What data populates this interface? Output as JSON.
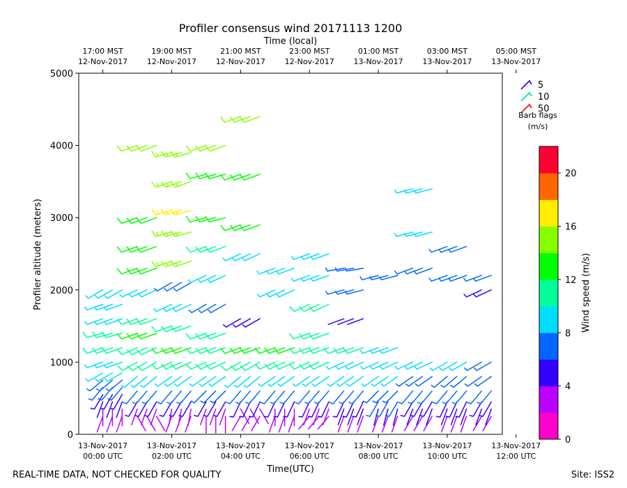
{
  "chart_data": {
    "type": "wind-barb",
    "title": "Profiler consensus wind 20171113 1200",
    "xlabel": "Time(UTC)",
    "xlabel_top": "Time (local)",
    "ylabel": "Profiler altitude (meters)",
    "xlim_hours_utc": [
      -0.7,
      11.6
    ],
    "ylim": [
      0,
      5000
    ],
    "y_ticks": [
      0,
      1000,
      2000,
      3000,
      4000,
      5000
    ],
    "x_ticks_bottom": [
      {
        "hour": 0,
        "date": "13-Nov-2017",
        "time": "00:00 UTC"
      },
      {
        "hour": 2,
        "date": "13-Nov-2017",
        "time": "02:00 UTC"
      },
      {
        "hour": 4,
        "date": "13-Nov-2017",
        "time": "04:00 UTC"
      },
      {
        "hour": 6,
        "date": "13-Nov-2017",
        "time": "06:00 UTC"
      },
      {
        "hour": 8,
        "date": "13-Nov-2017",
        "time": "08:00 UTC"
      },
      {
        "hour": 10,
        "date": "13-Nov-2017",
        "time": "10:00 UTC"
      },
      {
        "hour": 12,
        "date": "13-Nov-2017",
        "time": "12:00 UTC"
      }
    ],
    "x_ticks_top": [
      {
        "hour": 0,
        "time": "17:00 MST",
        "date": "12-Nov-2017"
      },
      {
        "hour": 2,
        "time": "19:00 MST",
        "date": "12-Nov-2017"
      },
      {
        "hour": 4,
        "time": "21:00 MST",
        "date": "12-Nov-2017"
      },
      {
        "hour": 6,
        "time": "23:00 MST",
        "date": "12-Nov-2017"
      },
      {
        "hour": 8,
        "time": "01:00 MST",
        "date": "13-Nov-2017"
      },
      {
        "hour": 10,
        "time": "03:00 MST",
        "date": "13-Nov-2017"
      },
      {
        "hour": 12,
        "time": "05:00 MST",
        "date": "13-Nov-2017"
      }
    ],
    "barb_legend": {
      "title": "Barb flags",
      "units": "(m/s)",
      "entries": [
        {
          "label": "5",
          "color": "#1a1aff"
        },
        {
          "label": "10",
          "color": "#00e5a0"
        },
        {
          "label": "50",
          "color": "#ff1a1a"
        }
      ]
    },
    "colorbar": {
      "label": "Wind speed (m/s)",
      "min": 0,
      "max": 22,
      "step": 2,
      "ticks": [
        0,
        4,
        8,
        12,
        16,
        20
      ],
      "colors": [
        "#ff00cc",
        "#bb00ff",
        "#3300ff",
        "#0066ff",
        "#00ddff",
        "#00ff99",
        "#00ff00",
        "#88ff00",
        "#ffee00",
        "#ff6600",
        "#ff0033"
      ]
    },
    "series": [
      {
        "name": "00:00 UTC",
        "hour": 0.0,
        "levels": [
          [
            250,
            3,
            200
          ],
          [
            350,
            3,
            180
          ],
          [
            450,
            4,
            200
          ],
          [
            550,
            5,
            210
          ],
          [
            650,
            6,
            220
          ],
          [
            750,
            7,
            230
          ],
          [
            850,
            8,
            240
          ],
          [
            1000,
            9,
            250
          ],
          [
            1200,
            10,
            250
          ],
          [
            1400,
            10,
            255
          ],
          [
            1600,
            9,
            250
          ],
          [
            1800,
            9,
            250
          ],
          [
            2000,
            8,
            240
          ]
        ]
      },
      {
        "name": "01:00 UTC",
        "hour": 1.0,
        "levels": [
          [
            250,
            2,
            150
          ],
          [
            350,
            3,
            200
          ],
          [
            450,
            5,
            210
          ],
          [
            600,
            6,
            220
          ],
          [
            800,
            8,
            230
          ],
          [
            1000,
            10,
            240
          ],
          [
            1200,
            11,
            245
          ],
          [
            1400,
            12,
            250
          ],
          [
            1600,
            10,
            250
          ],
          [
            2000,
            9,
            245
          ],
          [
            2300,
            12,
            250
          ],
          [
            2600,
            13,
            250
          ],
          [
            3000,
            13,
            250
          ],
          [
            4000,
            14,
            250
          ]
        ]
      },
      {
        "name": "02:00 UTC",
        "hour": 2.0,
        "levels": [
          [
            250,
            2,
            200
          ],
          [
            350,
            3,
            190
          ],
          [
            450,
            5,
            210
          ],
          [
            600,
            6,
            220
          ],
          [
            800,
            8,
            235
          ],
          [
            1000,
            11,
            245
          ],
          [
            1200,
            12,
            250
          ],
          [
            1500,
            11,
            250
          ],
          [
            1800,
            9,
            245
          ],
          [
            2100,
            6,
            240
          ],
          [
            2400,
            15,
            250
          ],
          [
            2800,
            15,
            255
          ],
          [
            3100,
            16,
            255
          ],
          [
            3500,
            15,
            250
          ],
          [
            3900,
            15,
            255
          ]
        ]
      },
      {
        "name": "03:00 UTC",
        "hour": 3.0,
        "levels": [
          [
            250,
            2,
            180
          ],
          [
            350,
            3,
            200
          ],
          [
            450,
            5,
            210
          ],
          [
            600,
            6,
            225
          ],
          [
            800,
            8,
            235
          ],
          [
            1000,
            10,
            245
          ],
          [
            1200,
            11,
            250
          ],
          [
            1400,
            10,
            250
          ],
          [
            1800,
            6,
            240
          ],
          [
            2200,
            9,
            245
          ],
          [
            2600,
            10,
            250
          ],
          [
            3000,
            12,
            255
          ],
          [
            3600,
            13,
            255
          ],
          [
            4000,
            14,
            250
          ]
        ]
      },
      {
        "name": "04:00 UTC",
        "hour": 4.0,
        "levels": [
          [
            250,
            2,
            210
          ],
          [
            350,
            2,
            150
          ],
          [
            450,
            5,
            205
          ],
          [
            600,
            6,
            220
          ],
          [
            800,
            8,
            230
          ],
          [
            1000,
            10,
            240
          ],
          [
            1200,
            12,
            250
          ],
          [
            1600,
            5,
            240
          ],
          [
            2500,
            9,
            245
          ],
          [
            2900,
            12,
            250
          ],
          [
            3600,
            13,
            250
          ],
          [
            4400,
            14,
            250
          ]
        ]
      },
      {
        "name": "05:00 UTC",
        "hour": 5.0,
        "levels": [
          [
            250,
            2,
            200
          ],
          [
            350,
            3,
            180
          ],
          [
            450,
            5,
            205
          ],
          [
            600,
            7,
            220
          ],
          [
            800,
            9,
            235
          ],
          [
            1000,
            11,
            245
          ],
          [
            1200,
            12,
            250
          ],
          [
            2000,
            8,
            245
          ],
          [
            2300,
            9,
            250
          ]
        ]
      },
      {
        "name": "06:00 UTC",
        "hour": 6.0,
        "levels": [
          [
            250,
            2,
            220
          ],
          [
            350,
            3,
            200
          ],
          [
            450,
            5,
            205
          ],
          [
            600,
            7,
            220
          ],
          [
            800,
            9,
            235
          ],
          [
            1000,
            10,
            245
          ],
          [
            1200,
            11,
            250
          ],
          [
            1400,
            11,
            250
          ],
          [
            1800,
            10,
            245
          ],
          [
            2200,
            8,
            250
          ],
          [
            2500,
            8,
            250
          ]
        ]
      },
      {
        "name": "07:00 UTC",
        "hour": 7.0,
        "levels": [
          [
            250,
            2,
            200
          ],
          [
            350,
            4,
            200
          ],
          [
            450,
            5,
            205
          ],
          [
            600,
            7,
            220
          ],
          [
            800,
            8,
            235
          ],
          [
            1000,
            9,
            245
          ],
          [
            1200,
            10,
            250
          ],
          [
            1600,
            4,
            250
          ],
          [
            2000,
            6,
            255
          ],
          [
            2300,
            7,
            260
          ]
        ]
      },
      {
        "name": "08:00 UTC",
        "hour": 8.0,
        "levels": [
          [
            250,
            2,
            200
          ],
          [
            350,
            4,
            195
          ],
          [
            450,
            6,
            210
          ],
          [
            600,
            7,
            225
          ],
          [
            800,
            8,
            235
          ],
          [
            1000,
            9,
            245
          ],
          [
            1200,
            8,
            250
          ],
          [
            2200,
            6,
            255
          ]
        ]
      },
      {
        "name": "09:00 UTC",
        "hour": 9.0,
        "levels": [
          [
            250,
            2,
            210
          ],
          [
            350,
            4,
            200
          ],
          [
            450,
            5,
            210
          ],
          [
            600,
            6,
            220
          ],
          [
            800,
            7,
            235
          ],
          [
            1000,
            8,
            245
          ],
          [
            2300,
            6,
            250
          ],
          [
            2800,
            8,
            255
          ],
          [
            3400,
            9,
            255
          ]
        ]
      },
      {
        "name": "10:00 UTC",
        "hour": 10.0,
        "levels": [
          [
            250,
            2,
            200
          ],
          [
            350,
            4,
            200
          ],
          [
            450,
            5,
            205
          ],
          [
            600,
            6,
            220
          ],
          [
            800,
            7,
            230
          ],
          [
            1000,
            8,
            240
          ],
          [
            2200,
            6,
            250
          ],
          [
            2600,
            7,
            250
          ]
        ]
      },
      {
        "name": "11:00 UTC",
        "hour": 11.0,
        "levels": [
          [
            250,
            2,
            210
          ],
          [
            350,
            4,
            200
          ],
          [
            450,
            5,
            210
          ],
          [
            600,
            6,
            220
          ],
          [
            800,
            7,
            235
          ],
          [
            1000,
            7,
            240
          ],
          [
            2000,
            5,
            245
          ],
          [
            2200,
            6,
            250
          ]
        ]
      }
    ]
  },
  "footer": {
    "left": "REAL-TIME DATA, NOT CHECKED FOR QUALITY",
    "right": "Site: ISS2"
  }
}
